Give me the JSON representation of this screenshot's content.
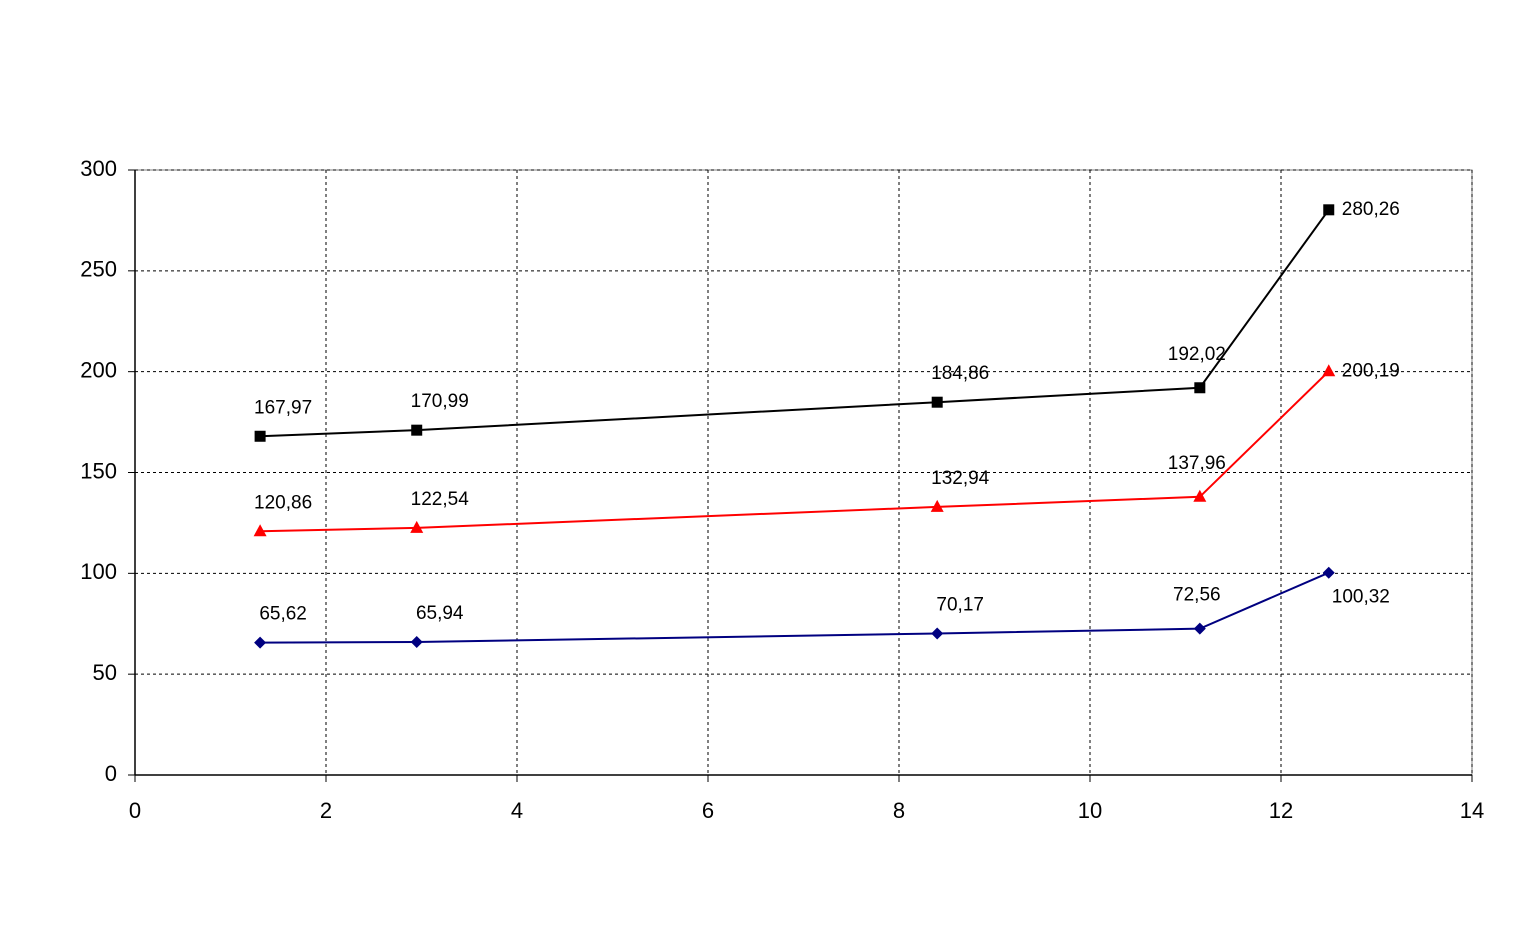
{
  "chart_data": {
    "type": "line",
    "x": [
      1.31,
      2.95,
      8.4,
      11.15,
      12.5
    ],
    "series": [
      {
        "color": "#000000",
        "marker": "square",
        "values": [
          167.97,
          170.99,
          184.86,
          192.02,
          280.26
        ],
        "value_labels": [
          "167,97",
          "170,99",
          "184,86",
          "192,02",
          "280,26"
        ]
      },
      {
        "color": "#ff0000",
        "marker": "triangle",
        "values": [
          120.86,
          122.54,
          132.94,
          137.96,
          200.19
        ],
        "value_labels": [
          "120,86",
          "122,54",
          "132,94",
          "137,96",
          "200,19"
        ]
      },
      {
        "color": "#000080",
        "marker": "diamond",
        "values": [
          65.62,
          65.94,
          70.17,
          72.56,
          100.32
        ],
        "value_labels": [
          "65,62",
          "65,94",
          "70,17",
          "72,56",
          "100,32"
        ]
      }
    ],
    "xlim": [
      0,
      14
    ],
    "xticks": [
      0,
      2,
      4,
      6,
      8,
      10,
      12,
      14
    ],
    "ylim": [
      0,
      300
    ],
    "yticks": [
      0,
      50,
      100,
      150,
      200,
      250,
      300
    ],
    "grid": true
  }
}
